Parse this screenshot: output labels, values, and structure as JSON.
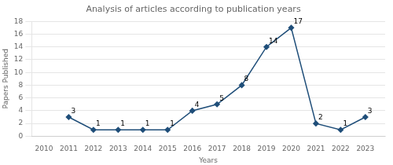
{
  "chart_data": {
    "type": "line",
    "title": "Analysis of articles according to publication years",
    "xlabel": "Years",
    "ylabel": "Papers Published",
    "x": [
      2010,
      2011,
      2012,
      2013,
      2014,
      2015,
      2016,
      2017,
      2018,
      2019,
      2020,
      2021,
      2022,
      2023
    ],
    "values": [
      null,
      3,
      1,
      1,
      1,
      1,
      4,
      5,
      8,
      14,
      17,
      2,
      1,
      3
    ],
    "color": "#1F4E79",
    "marker": "diamond",
    "xlim": [
      2009.5,
      2023.8
    ],
    "xticks": [
      2010,
      2011,
      2012,
      2013,
      2014,
      2015,
      2016,
      2017,
      2018,
      2019,
      2020,
      2021,
      2022,
      2023
    ],
    "ylim": [
      0,
      18
    ],
    "yticks": [
      0,
      2,
      4,
      6,
      8,
      10,
      12,
      14,
      16,
      18
    ],
    "grid": "y",
    "data_labels": true
  }
}
